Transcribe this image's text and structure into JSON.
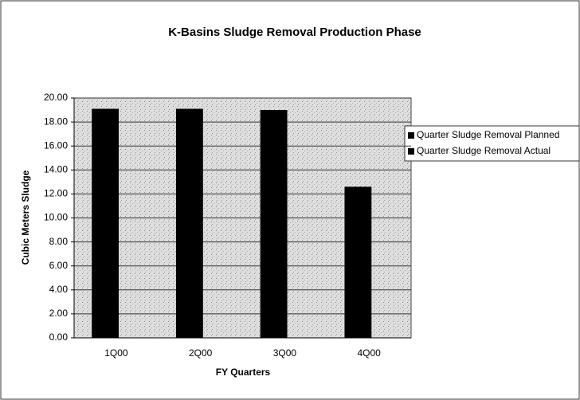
{
  "chart_data": {
    "type": "bar",
    "title": "K-Basins Sludge Removal Production Phase",
    "xlabel": "FY Quarters",
    "ylabel": "Cubic Meters Sludge",
    "categories": [
      "1Q00",
      "2Q00",
      "3Q00",
      "4Q00"
    ],
    "series": [
      {
        "name": "Quarter Sludge Removal Planned",
        "color": "#000000",
        "values": [
          19.1,
          19.1,
          19.0,
          12.6
        ]
      },
      {
        "name": "Quarter Sludge Removal Actual",
        "color": "#000000",
        "values": [
          null,
          null,
          null,
          null
        ]
      }
    ],
    "ylim": [
      0,
      20
    ],
    "yticks": [
      {
        "value": 0,
        "label": "0.00"
      },
      {
        "value": 2,
        "label": "2.00"
      },
      {
        "value": 4,
        "label": "4.00"
      },
      {
        "value": 6,
        "label": "6.00"
      },
      {
        "value": 8,
        "label": "8.00"
      },
      {
        "value": 10,
        "label": "10.00"
      },
      {
        "value": 12,
        "label": "12.00"
      },
      {
        "value": 14,
        "label": "14.00"
      },
      {
        "value": 16,
        "label": "16.00"
      },
      {
        "value": 18,
        "label": "18.00"
      },
      {
        "value": 20,
        "label": "20.00"
      }
    ],
    "grid": true,
    "legend": "right"
  }
}
